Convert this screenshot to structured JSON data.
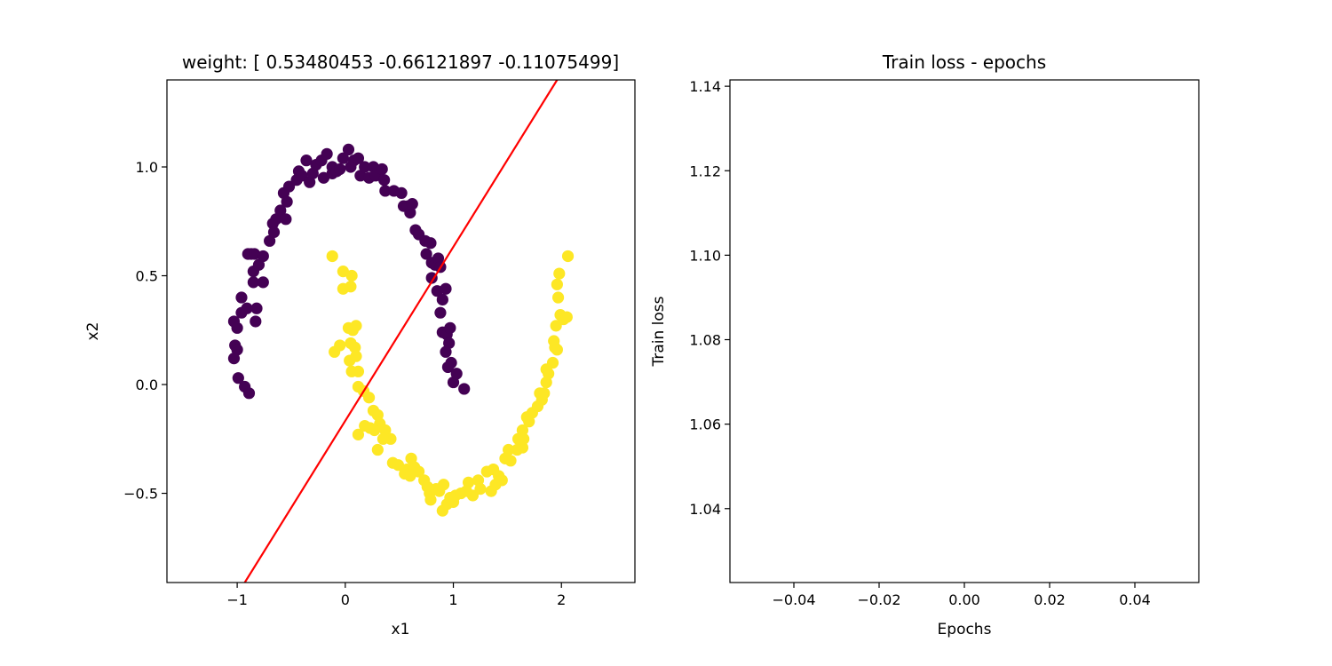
{
  "chart_data": [
    {
      "type": "scatter",
      "title": "weight: [ 0.53480453 -0.66121897 -0.11075499]",
      "xlabel": "x1",
      "ylabel": "x2",
      "xlim": [
        -1.65,
        2.68
      ],
      "ylim": [
        -0.91,
        1.4
      ],
      "xticks": [
        -1,
        0,
        1,
        2
      ],
      "xtick_labels": [
        "−1",
        "0",
        "1",
        "2"
      ],
      "yticks": [
        -0.5,
        0.0,
        0.5,
        1.0
      ],
      "ytick_labels": [
        "−0.5",
        "0.0",
        "0.5",
        "1.0"
      ],
      "grid": false,
      "colors": {
        "class0": "#440154",
        "class1": "#fde725",
        "line": "#ff0000"
      },
      "decision_line": {
        "x": [
          -0.93,
          1.96
        ],
        "y": [
          -0.91,
          1.4
        ]
      },
      "series": [
        {
          "class": 0,
          "color": "#440154",
          "points": [
            [
              -1.03,
              0.29
            ],
            [
              -1.02,
              0.18
            ],
            [
              -1.0,
              0.16
            ],
            [
              -1.03,
              0.12
            ],
            [
              -1.0,
              0.26
            ],
            [
              -0.96,
              0.33
            ],
            [
              -0.96,
              0.4
            ],
            [
              -0.91,
              0.35
            ],
            [
              -0.99,
              0.03
            ],
            [
              -0.93,
              -0.01
            ],
            [
              -0.89,
              -0.04
            ],
            [
              -0.83,
              0.29
            ],
            [
              -0.82,
              0.35
            ],
            [
              -0.9,
              0.6
            ],
            [
              -0.87,
              0.6
            ],
            [
              -0.84,
              0.6
            ],
            [
              -0.85,
              0.52
            ],
            [
              -0.8,
              0.55
            ],
            [
              -0.85,
              0.47
            ],
            [
              -0.76,
              0.47
            ],
            [
              -0.76,
              0.59
            ],
            [
              -0.7,
              0.66
            ],
            [
              -0.67,
              0.74
            ],
            [
              -0.64,
              0.76
            ],
            [
              -0.66,
              0.7
            ],
            [
              -0.6,
              0.8
            ],
            [
              -0.57,
              0.88
            ],
            [
              -0.54,
              0.84
            ],
            [
              -0.52,
              0.91
            ],
            [
              -0.55,
              0.76
            ],
            [
              -0.45,
              0.94
            ],
            [
              -0.43,
              0.98
            ],
            [
              -0.4,
              0.96
            ],
            [
              -0.36,
              1.03
            ],
            [
              -0.33,
              0.93
            ],
            [
              -0.3,
              0.97
            ],
            [
              -0.27,
              1.01
            ],
            [
              -0.22,
              1.03
            ],
            [
              -0.2,
              0.95
            ],
            [
              -0.17,
              1.06
            ],
            [
              -0.12,
              1.0
            ],
            [
              -0.12,
              0.97
            ],
            [
              -0.08,
              0.98
            ],
            [
              -0.05,
              0.99
            ],
            [
              -0.02,
              1.04
            ],
            [
              0.03,
              1.08
            ],
            [
              0.05,
              1.0
            ],
            [
              0.08,
              1.03
            ],
            [
              0.12,
              1.04
            ],
            [
              0.14,
              0.96
            ],
            [
              0.18,
              1.0
            ],
            [
              0.22,
              0.95
            ],
            [
              0.26,
              1.0
            ],
            [
              0.28,
              0.96
            ],
            [
              0.34,
              0.99
            ],
            [
              0.36,
              0.94
            ],
            [
              0.37,
              0.89
            ],
            [
              0.45,
              0.89
            ],
            [
              0.52,
              0.88
            ],
            [
              0.54,
              0.82
            ],
            [
              0.58,
              0.82
            ],
            [
              0.6,
              0.79
            ],
            [
              0.62,
              0.83
            ],
            [
              0.65,
              0.71
            ],
            [
              0.68,
              0.69
            ],
            [
              0.74,
              0.66
            ],
            [
              0.75,
              0.6
            ],
            [
              0.79,
              0.65
            ],
            [
              0.8,
              0.56
            ],
            [
              0.83,
              0.55
            ],
            [
              0.86,
              0.58
            ],
            [
              0.88,
              0.54
            ],
            [
              0.8,
              0.49
            ],
            [
              0.85,
              0.43
            ],
            [
              0.9,
              0.39
            ],
            [
              0.93,
              0.44
            ],
            [
              0.88,
              0.33
            ],
            [
              0.9,
              0.24
            ],
            [
              0.94,
              0.23
            ],
            [
              0.97,
              0.26
            ],
            [
              0.96,
              0.19
            ],
            [
              0.93,
              0.15
            ],
            [
              0.98,
              0.1
            ],
            [
              0.95,
              0.08
            ],
            [
              1.0,
              0.01
            ],
            [
              1.03,
              0.05
            ],
            [
              1.1,
              -0.02
            ]
          ]
        },
        {
          "class": 1,
          "color": "#fde725",
          "points": [
            [
              -0.12,
              0.59
            ],
            [
              -0.02,
              0.52
            ],
            [
              0.06,
              0.5
            ],
            [
              -0.02,
              0.44
            ],
            [
              0.05,
              0.45
            ],
            [
              -0.1,
              0.15
            ],
            [
              -0.05,
              0.18
            ],
            [
              0.03,
              0.26
            ],
            [
              0.07,
              0.25
            ],
            [
              0.1,
              0.27
            ],
            [
              0.05,
              0.19
            ],
            [
              0.09,
              0.17
            ],
            [
              0.04,
              0.11
            ],
            [
              0.1,
              0.13
            ],
            [
              0.12,
              0.06
            ],
            [
              0.06,
              0.06
            ],
            [
              0.12,
              -0.01
            ],
            [
              0.17,
              -0.03
            ],
            [
              0.22,
              -0.06
            ],
            [
              0.26,
              -0.12
            ],
            [
              0.3,
              -0.14
            ],
            [
              0.32,
              -0.18
            ],
            [
              0.18,
              -0.19
            ],
            [
              0.23,
              -0.2
            ],
            [
              0.27,
              -0.21
            ],
            [
              0.37,
              -0.21
            ],
            [
              0.42,
              -0.25
            ],
            [
              0.35,
              -0.25
            ],
            [
              0.12,
              -0.23
            ],
            [
              0.3,
              -0.3
            ],
            [
              0.44,
              -0.36
            ],
            [
              0.49,
              -0.37
            ],
            [
              0.57,
              -0.39
            ],
            [
              0.61,
              -0.34
            ],
            [
              0.64,
              -0.38
            ],
            [
              0.68,
              -0.4
            ],
            [
              0.55,
              -0.41
            ],
            [
              0.6,
              -0.42
            ],
            [
              0.73,
              -0.44
            ],
            [
              0.76,
              -0.47
            ],
            [
              0.78,
              -0.5
            ],
            [
              0.79,
              -0.53
            ],
            [
              0.84,
              -0.48
            ],
            [
              0.87,
              -0.49
            ],
            [
              0.91,
              -0.46
            ],
            [
              0.9,
              -0.58
            ],
            [
              0.94,
              -0.55
            ],
            [
              0.97,
              -0.52
            ],
            [
              1.0,
              -0.54
            ],
            [
              1.02,
              -0.51
            ],
            [
              1.07,
              -0.5
            ],
            [
              1.12,
              -0.49
            ],
            [
              1.14,
              -0.45
            ],
            [
              1.18,
              -0.51
            ],
            [
              1.23,
              -0.44
            ],
            [
              1.25,
              -0.48
            ],
            [
              1.31,
              -0.4
            ],
            [
              1.37,
              -0.39
            ],
            [
              1.39,
              -0.46
            ],
            [
              1.35,
              -0.49
            ],
            [
              1.42,
              -0.42
            ],
            [
              1.45,
              -0.44
            ],
            [
              1.48,
              -0.34
            ],
            [
              1.51,
              -0.3
            ],
            [
              1.53,
              -0.35
            ],
            [
              1.59,
              -0.3
            ],
            [
              1.64,
              -0.29
            ],
            [
              1.6,
              -0.25
            ],
            [
              1.64,
              -0.21
            ],
            [
              1.65,
              -0.25
            ],
            [
              1.68,
              -0.15
            ],
            [
              1.7,
              -0.17
            ],
            [
              1.73,
              -0.13
            ],
            [
              1.78,
              -0.1
            ],
            [
              1.82,
              -0.07
            ],
            [
              1.8,
              -0.04
            ],
            [
              1.84,
              -0.04
            ],
            [
              1.86,
              0.01
            ],
            [
              1.88,
              0.05
            ],
            [
              1.86,
              0.07
            ],
            [
              1.92,
              0.1
            ],
            [
              1.94,
              0.17
            ],
            [
              1.93,
              0.2
            ],
            [
              1.96,
              0.16
            ],
            [
              1.95,
              0.27
            ],
            [
              1.99,
              0.32
            ],
            [
              2.02,
              0.3
            ],
            [
              2.05,
              0.31
            ],
            [
              1.97,
              0.4
            ],
            [
              1.96,
              0.46
            ],
            [
              1.98,
              0.51
            ],
            [
              2.06,
              0.59
            ]
          ]
        }
      ]
    },
    {
      "type": "line",
      "title": "Train loss - epochs",
      "xlabel": "Epochs",
      "ylabel": "Train loss",
      "xlim": [
        -0.055,
        0.055
      ],
      "ylim": [
        1.0225,
        1.1415
      ],
      "xticks": [
        -0.04,
        -0.02,
        0.0,
        0.02,
        0.04
      ],
      "xtick_labels": [
        "−0.04",
        "−0.02",
        "0.00",
        "0.02",
        "0.04"
      ],
      "yticks": [
        1.04,
        1.06,
        1.08,
        1.1,
        1.12,
        1.14
      ],
      "ytick_labels": [
        "1.04",
        "1.06",
        "1.08",
        "1.10",
        "1.12",
        "1.14"
      ],
      "grid": false,
      "series": []
    }
  ]
}
